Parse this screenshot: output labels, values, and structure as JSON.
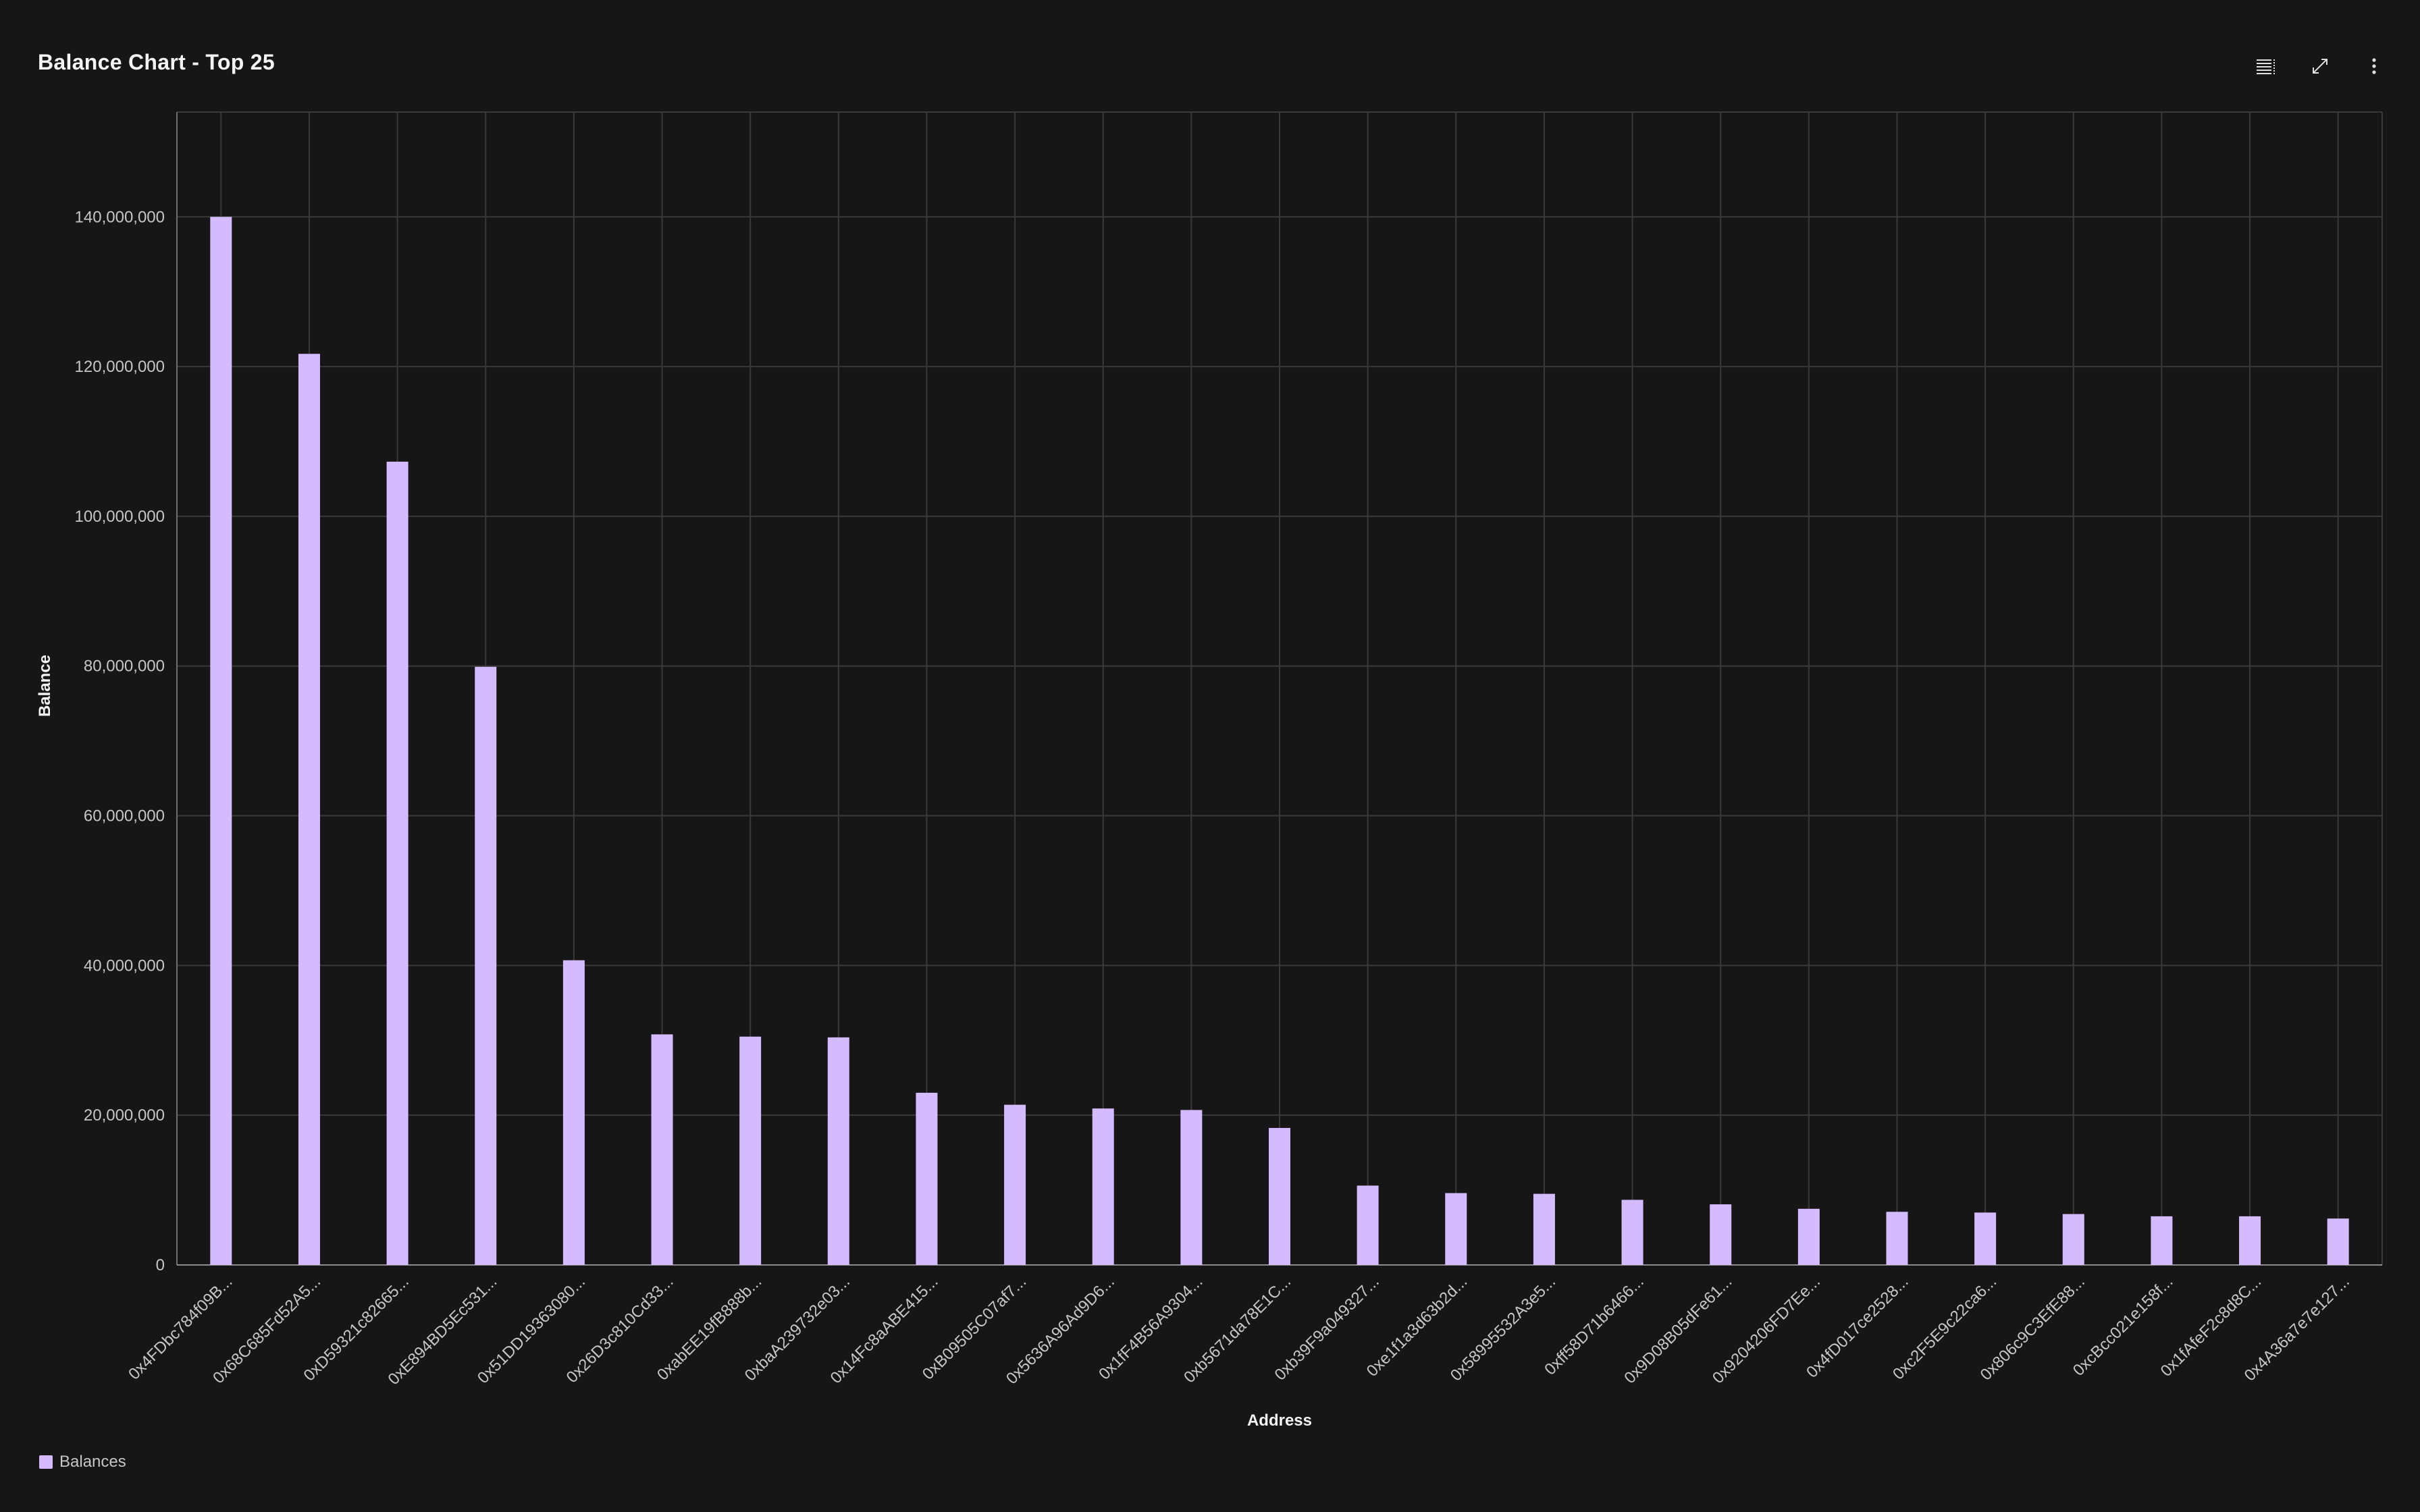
{
  "header": {
    "title": "Balance Chart - Top 25"
  },
  "toolbar": {
    "table_icon": "table-view-icon",
    "expand_icon": "maximize-icon",
    "more_icon": "overflow-menu-icon"
  },
  "colors": {
    "background": "#161616",
    "bar": "#d4bbff",
    "grid": "#393939",
    "axis_text": "#c6c6c6",
    "title_text": "#f4f4f4"
  },
  "legend": {
    "label": "Balances"
  },
  "chart_data": {
    "type": "bar",
    "title": "Balance Chart - Top 25",
    "xlabel": "Address",
    "ylabel": "Balance",
    "ylim": [
      0,
      154000000
    ],
    "yticks": [
      0,
      20000000,
      40000000,
      60000000,
      80000000,
      100000000,
      120000000,
      140000000
    ],
    "ytick_labels": [
      "0",
      "20,000,000",
      "40,000,000",
      "60,000,000",
      "80,000,000",
      "100,000,000",
      "120,000,000",
      "140,000,000"
    ],
    "grid": true,
    "legend_position": "bottom-left",
    "categories": [
      "0x4FDbc784f09B...",
      "0x68C685Fd52A5...",
      "0xD59321c82665...",
      "0xE894BD5Ec531...",
      "0x51DD19363080...",
      "0x26D3c810Cd33...",
      "0xabEE19fB888b...",
      "0xbaA239732e03...",
      "0x14Fc8aABE415...",
      "0xB09505C07af7...",
      "0x5636A96Ad9D6...",
      "0x1fF4B56A9304...",
      "0xb5671da78E1C...",
      "0xb39F9a049327...",
      "0xe1f1a3d63b2d...",
      "0x58995532A3e5...",
      "0xff58D71b6466...",
      "0x9D08B05dFe61...",
      "0x9204206FD7Ee...",
      "0x4fD017ce2528...",
      "0xc2F5E9c22ca6...",
      "0x806c9C3EfE88...",
      "0xcBcc021e158f...",
      "0x1fAfeF2c8d8C...",
      "0x4A36a7e7e127..."
    ],
    "series": [
      {
        "name": "Balances",
        "values": [
          140000000,
          121700000,
          107300000,
          79900000,
          40700000,
          30800000,
          30500000,
          30400000,
          23000000,
          21400000,
          20900000,
          20700000,
          18300000,
          10600000,
          9600000,
          9500000,
          8700000,
          8100000,
          7500000,
          7100000,
          7000000,
          6800000,
          6500000,
          6500000,
          6200000
        ]
      }
    ]
  }
}
